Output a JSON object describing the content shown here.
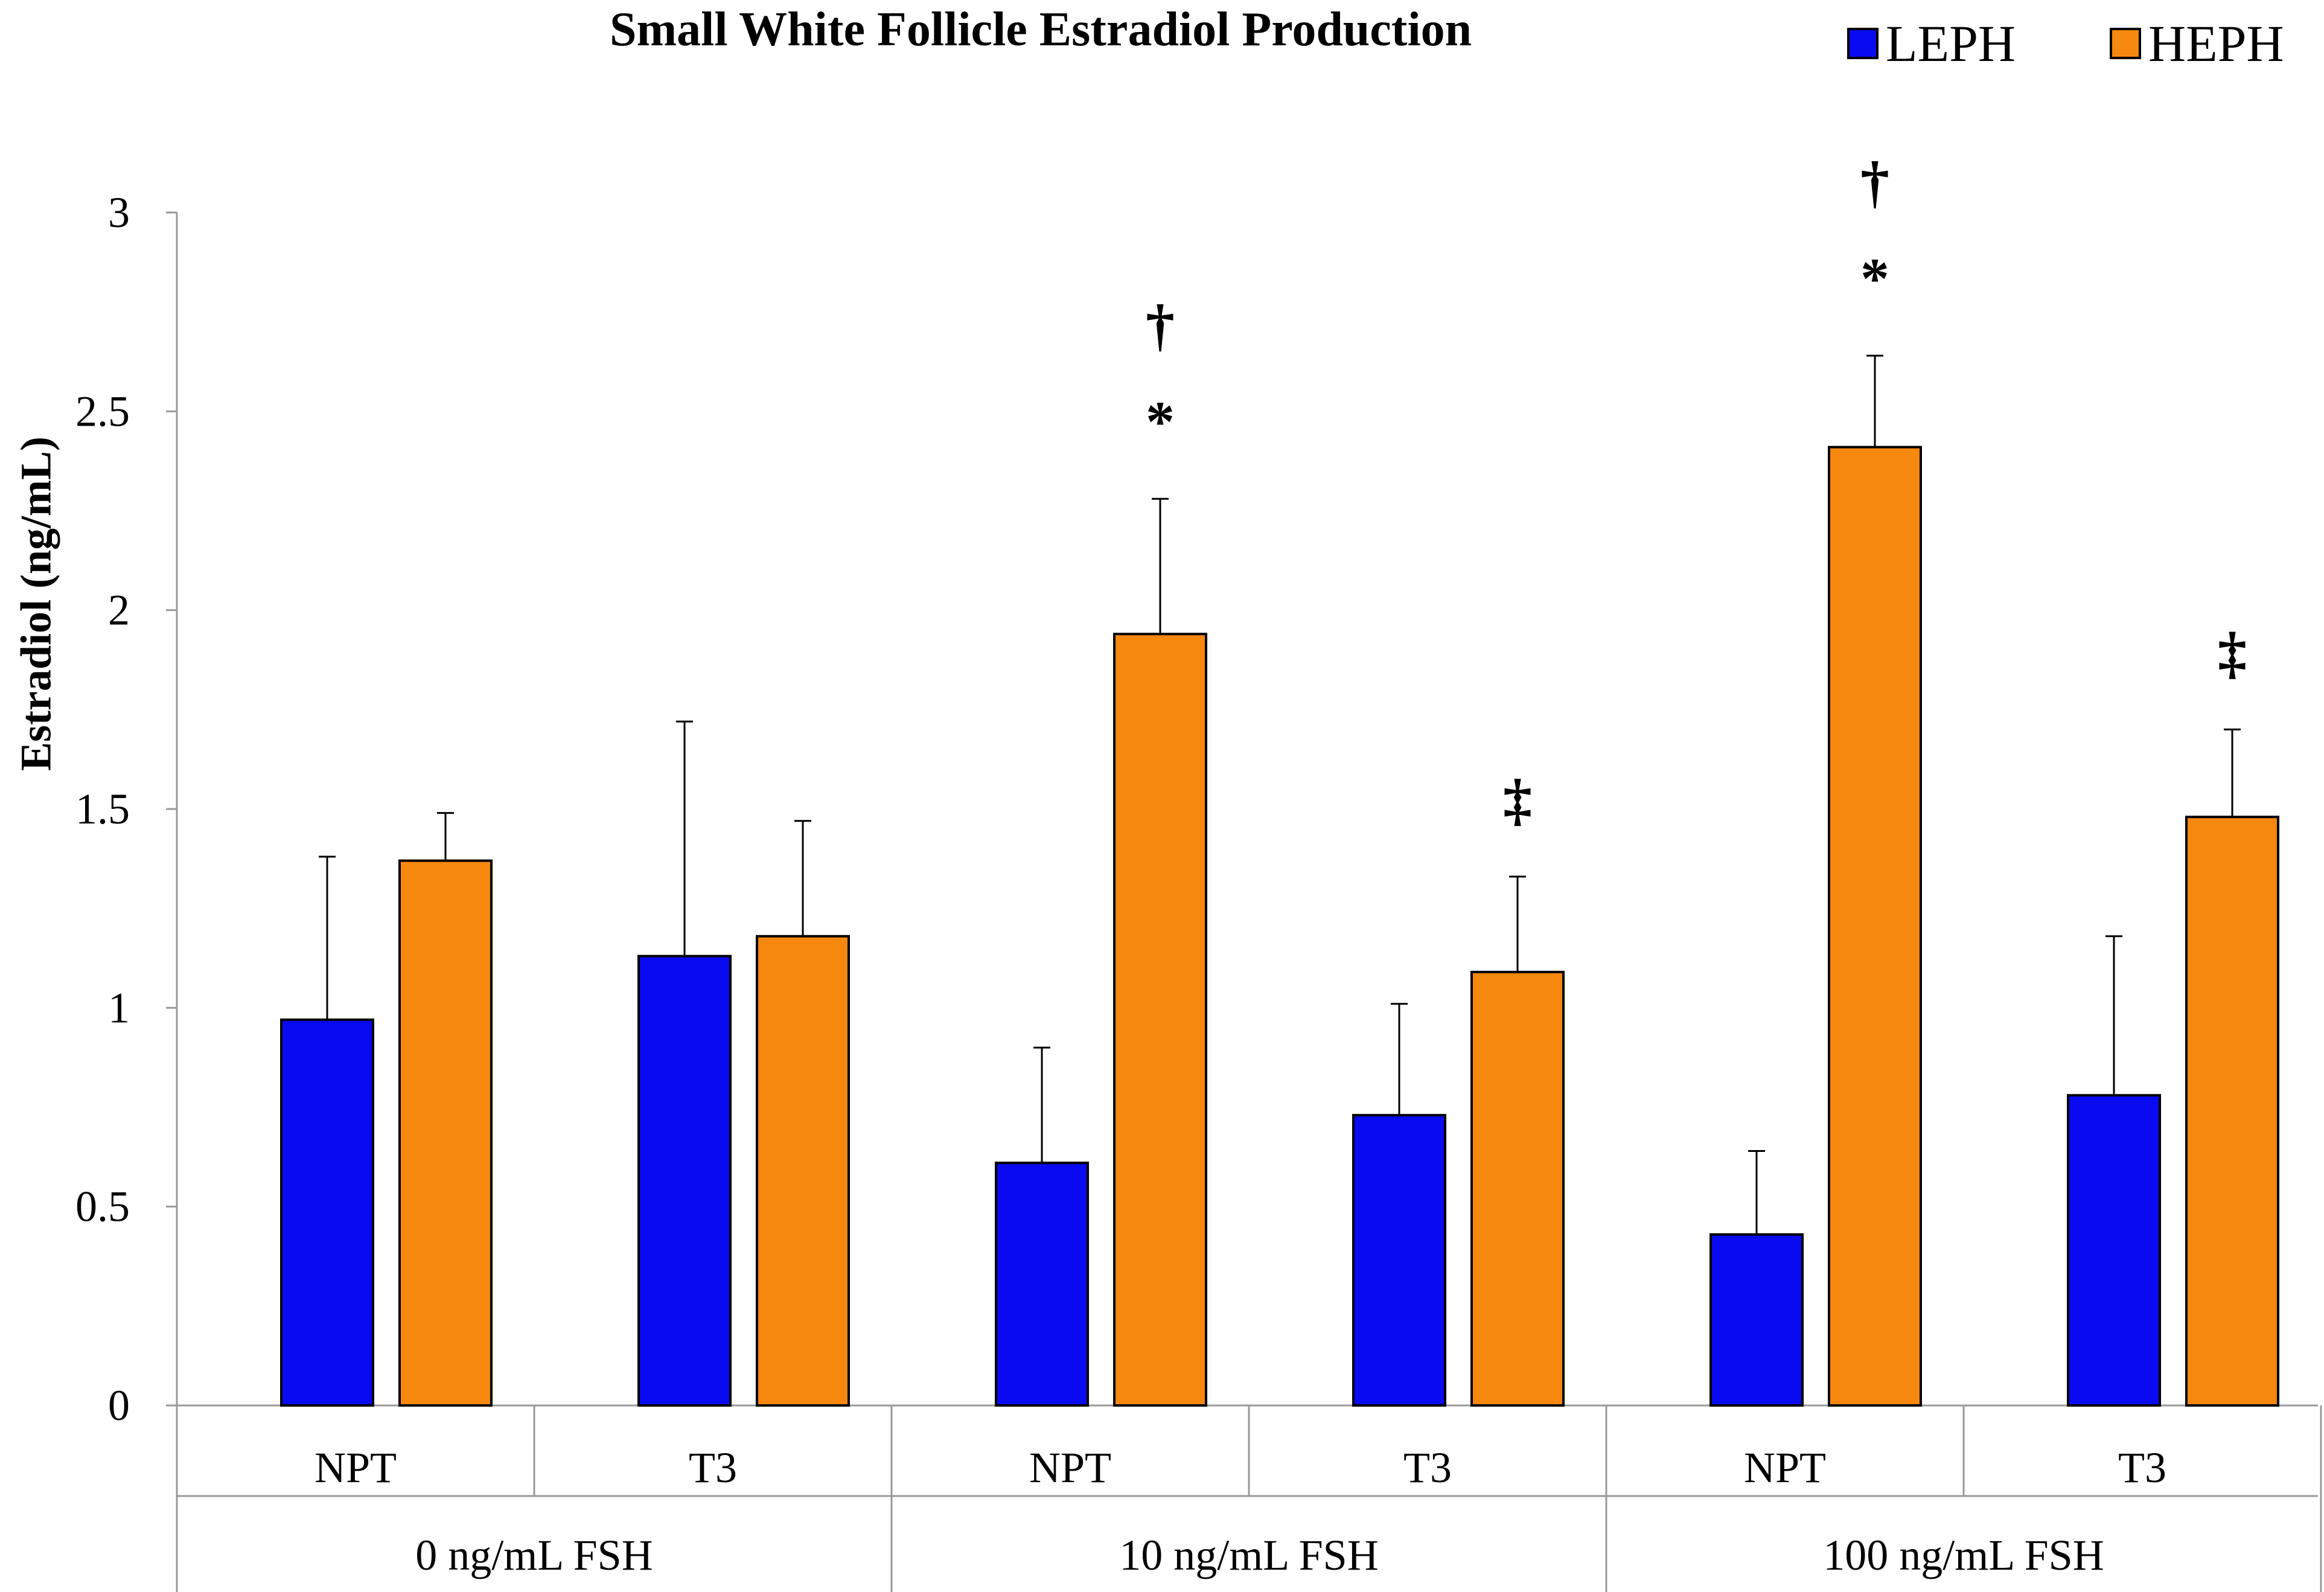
{
  "chart_data": {
    "type": "bar",
    "title": "Small White Follicle Estradiol Production",
    "xlabel": "",
    "ylabel": "Estradiol (ng/mL)",
    "ylim": [
      0,
      3
    ],
    "yticks": [
      "0",
      "0.5",
      "1",
      "1.5",
      "2",
      "2.5",
      "3"
    ],
    "ytick_values": [
      0,
      0.5,
      1,
      1.5,
      2,
      2.5,
      3
    ],
    "legend_position": "top-right",
    "groups": [
      {
        "label": "0 ng/mL FSH",
        "categories": [
          "NPT",
          "T3"
        ]
      },
      {
        "label": "10 ng/mL FSH",
        "categories": [
          "NPT",
          "T3"
        ]
      },
      {
        "label": "100 ng/mL FSH",
        "categories": [
          "NPT",
          "T3"
        ]
      }
    ],
    "categories": [
      "NPT",
      "T3",
      "NPT",
      "T3",
      "NPT",
      "T3"
    ],
    "series": [
      {
        "name": "LEPH",
        "color": "#0A0AF0",
        "values": [
          0.97,
          1.13,
          0.61,
          0.73,
          0.43,
          0.78
        ],
        "errors": [
          0.41,
          0.59,
          0.29,
          0.28,
          0.21,
          0.4
        ],
        "annotations": [
          "",
          "",
          "",
          "",
          "",
          ""
        ]
      },
      {
        "name": "HEPH",
        "color": "#F6870F",
        "values": [
          1.37,
          1.18,
          1.94,
          1.09,
          2.41,
          1.48
        ],
        "errors": [
          0.12,
          0.29,
          0.34,
          0.24,
          0.23,
          0.22
        ],
        "annotations": [
          "",
          "",
          "*|†",
          "‡",
          "*|†",
          "‡"
        ]
      }
    ]
  }
}
